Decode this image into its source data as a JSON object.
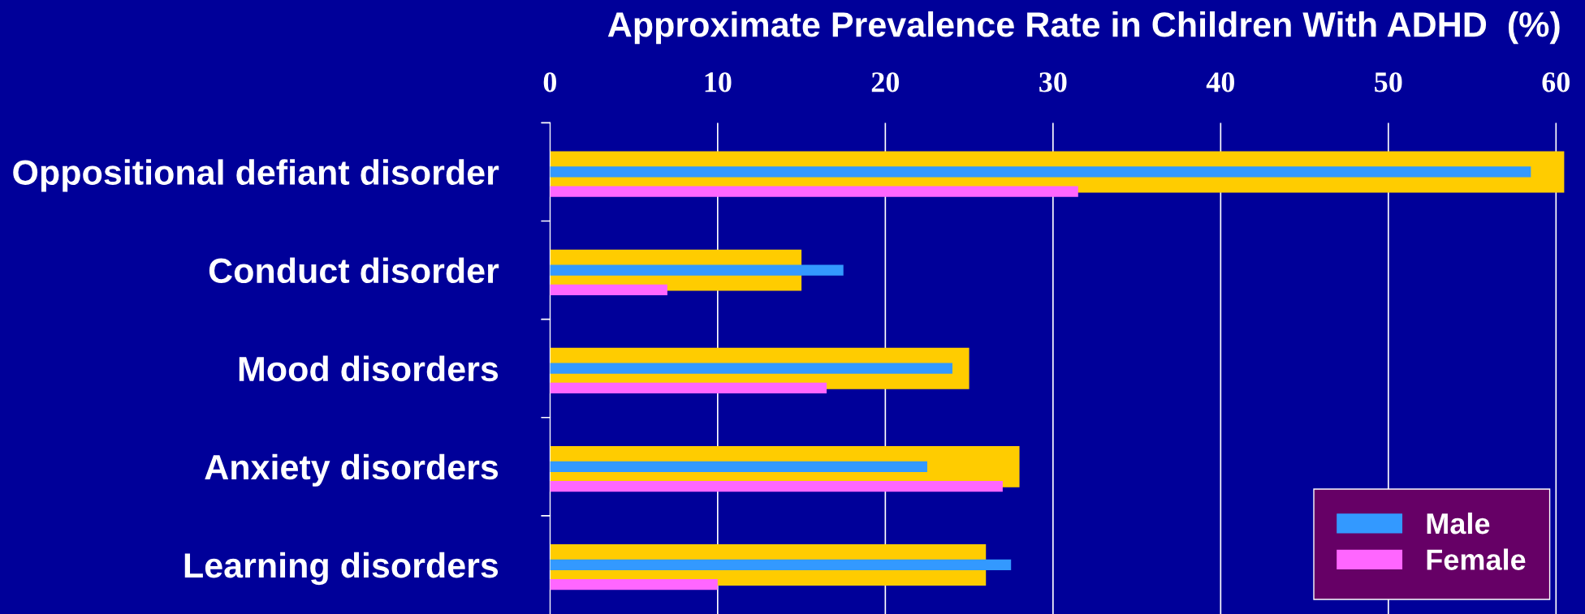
{
  "chart_data": {
    "type": "bar",
    "orientation": "horizontal",
    "title": "Approximate Prevalence Rate in Children With ADHD  (%)",
    "categories": [
      "Oppositional defiant disorder",
      "Conduct disorder",
      "Mood disorders",
      "Anxiety disorders",
      "Learning disorders"
    ],
    "series": [
      {
        "color": "#ffcc00",
        "values": [
          60.5,
          15,
          25,
          28,
          26
        ]
      },
      {
        "name": "Male",
        "color": "#3399ff",
        "values": [
          58.5,
          17.5,
          24,
          22.5,
          27.5
        ]
      },
      {
        "name": "Female",
        "color": "#ff66ff",
        "values": [
          31.5,
          7,
          16.5,
          27,
          10
        ]
      }
    ],
    "xlim": [
      0,
      60.5
    ],
    "xticks": [
      0,
      10,
      20,
      30,
      40,
      50,
      60
    ],
    "grid": "x",
    "legend": "bottom right"
  }
}
